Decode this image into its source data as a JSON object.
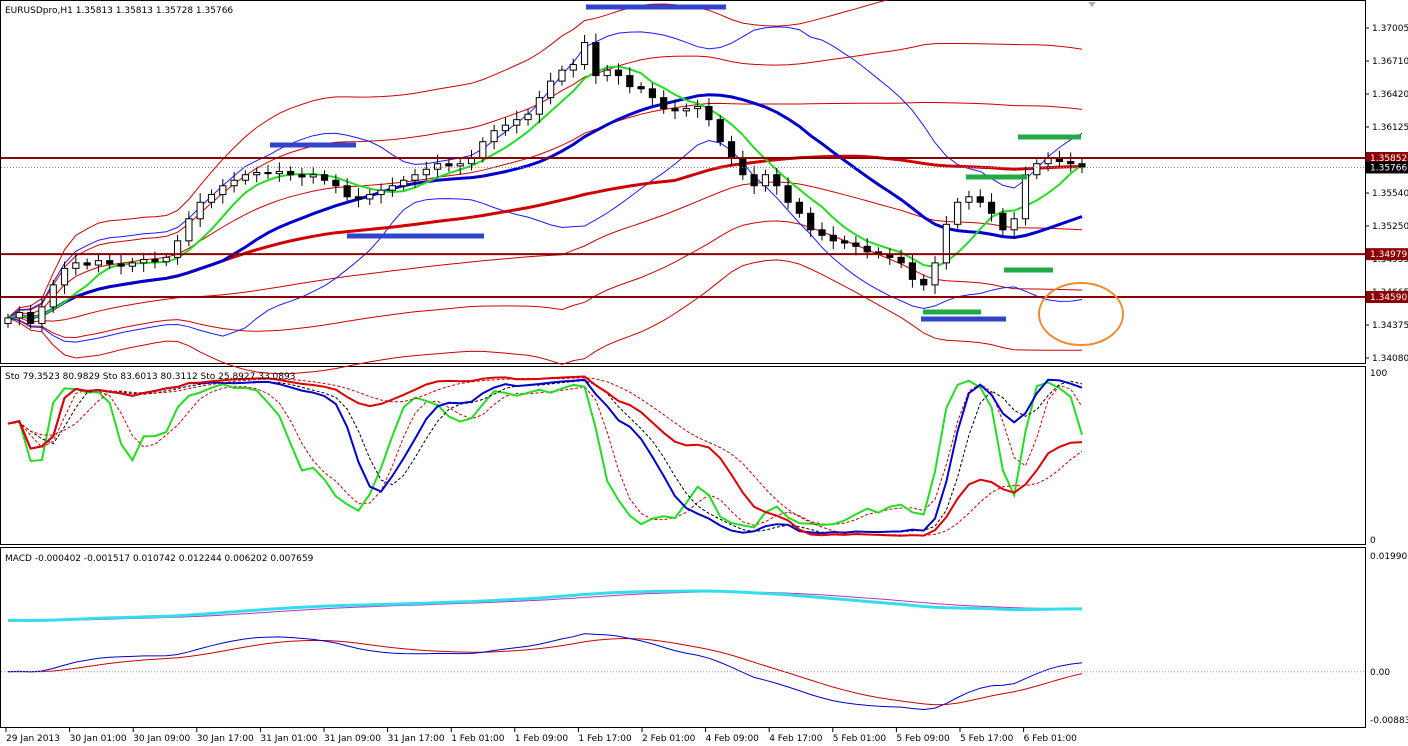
{
  "chart_data": [
    {
      "type": "candlestick",
      "title": "EURUSDpro,H1  1.35813 1.35813 1.35728 1.35766",
      "y_ticks": [
        "1.37005",
        "1.36710",
        "1.36420",
        "1.36125",
        "1.35830",
        "1.35540",
        "1.35250",
        "1.34955",
        "1.34665",
        "1.34375",
        "1.34080"
      ],
      "ylim": [
        1.34,
        1.3725
      ],
      "price_labels": [
        {
          "value": 1.35852,
          "text": "1.35852",
          "color": "#8b0000"
        },
        {
          "value": 1.35766,
          "text": "1.35766",
          "color": "#000000"
        },
        {
          "value": 1.34979,
          "text": "1.34979",
          "color": "#8b0000"
        },
        {
          "value": 1.3459,
          "text": "1.34590",
          "color": "#8b0000"
        }
      ],
      "horizontal_lines": [
        1.35852,
        1.34979,
        1.3459
      ],
      "x_ticks": [
        "29 Jan 2013",
        "30 Jan 01:00",
        "30 Jan 09:00",
        "30 Jan 17:00",
        "31 Jan 01:00",
        "31 Jan 09:00",
        "31 Jan 17:00",
        "1 Feb 01:00",
        "1 Feb 09:00",
        "1 Feb 17:00",
        "2 Feb 01:00",
        "4 Feb 09:00",
        "4 Feb 17:00",
        "5 Feb 01:00",
        "5 Feb 09:00",
        "5 Feb 17:00",
        "6 Feb 01:00"
      ],
      "close_approx": [
        1.344,
        1.3445,
        1.3435,
        1.345,
        1.347,
        1.3485,
        1.349,
        1.3488,
        1.3492,
        1.3489,
        1.3487,
        1.349,
        1.3493,
        1.3491,
        1.3495,
        1.351,
        1.353,
        1.3545,
        1.3552,
        1.356,
        1.3565,
        1.357,
        1.3572,
        1.3571,
        1.3573,
        1.357,
        1.3568,
        1.357,
        1.3565,
        1.356,
        1.355,
        1.3548,
        1.3552,
        1.3556,
        1.356,
        1.3565,
        1.357,
        1.3575,
        1.358,
        1.3578,
        1.358,
        1.3585,
        1.36,
        1.361,
        1.3615,
        1.362,
        1.3625,
        1.364,
        1.3655,
        1.3665,
        1.367,
        1.369,
        1.366,
        1.3665,
        1.366,
        1.365,
        1.3648,
        1.364,
        1.363,
        1.3628,
        1.363,
        1.3632,
        1.362,
        1.36,
        1.3585,
        1.357,
        1.356,
        1.357,
        1.356,
        1.3545,
        1.3535,
        1.352,
        1.3515,
        1.351,
        1.3508,
        1.3505,
        1.35,
        1.3498,
        1.3495,
        1.349,
        1.3475,
        1.347,
        1.349,
        1.3525,
        1.3545,
        1.355,
        1.3545,
        1.3535,
        1.352,
        1.353,
        1.357,
        1.358,
        1.3585,
        1.3582,
        1.358,
        1.3577
      ]
    },
    {
      "type": "line",
      "title": "Sto 79.3523 80.9829  Sto 83.6013 80.3112  Sto 25.8927 33.0893",
      "y_ticks": [
        "100",
        "0"
      ],
      "ylim": [
        0,
        100
      ]
    },
    {
      "type": "line",
      "title": "MACD -0.000402 -0.001517 0.010742 0.012244 0.006202 0.007659",
      "y_ticks": [
        "0.019905",
        "0.00",
        "-0.00883"
      ],
      "ylim": [
        -0.0095,
        0.021
      ]
    }
  ]
}
